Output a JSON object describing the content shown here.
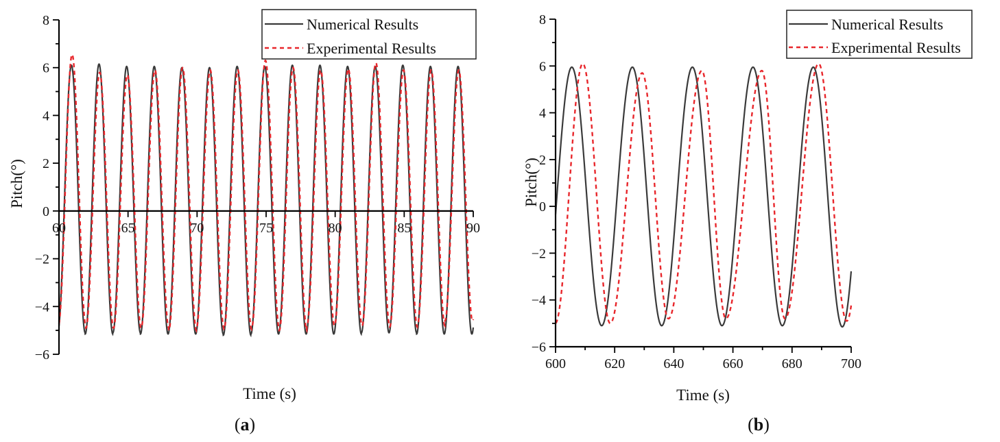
{
  "figure": {
    "panels": [
      "(a)",
      "(b)"
    ]
  },
  "chart_data": [
    {
      "type": "line",
      "panel_label": "a",
      "title": "",
      "xlabel": "Time (s)",
      "ylabel": "Pitch(°)",
      "xlim": [
        60,
        90
      ],
      "ylim": [
        -6,
        8
      ],
      "x_ticks": [
        60,
        65,
        70,
        75,
        80,
        85,
        90
      ],
      "x_tick_labels": [
        "60",
        "65",
        "70",
        "75",
        "80",
        "85",
        "90"
      ],
      "y_ticks": [
        -6,
        -4,
        -2,
        0,
        2,
        4,
        6,
        8
      ],
      "y_tick_labels": [
        "−6",
        "−4",
        "−2",
        "0",
        "2",
        "4",
        "6",
        "8"
      ],
      "x_axis_position": "y=0",
      "grid": false,
      "legend": {
        "placement": "top-right",
        "entries": [
          "Numerical Results",
          "Experimental Results"
        ]
      },
      "series": [
        {
          "name": "Numerical Results",
          "style": "solid",
          "color": "#3a3a3a",
          "model": {
            "period_s": 2.0,
            "first_peak_s": 60.9,
            "peak": 6.1,
            "trough": -5.15
          },
          "peaks": [
            6.1,
            6.15,
            6.05,
            6.05,
            6.0,
            6.0,
            6.05,
            6.05,
            6.1,
            6.1,
            6.05,
            6.05,
            6.1,
            6.05,
            6.05
          ],
          "troughs": [
            -5.1,
            -5.15,
            -5.1,
            -5.15,
            -5.15,
            -5.15,
            -5.2,
            -5.15,
            -5.15,
            -5.15,
            -5.15,
            -5.1,
            -5.1,
            -5.15,
            -5.15
          ]
        },
        {
          "name": "Experimental Results",
          "style": "dashed",
          "color": "#e8262b",
          "model": {
            "period_s": 2.0,
            "first_peak_s": 60.95,
            "peak": 6.0,
            "trough": -4.9
          },
          "peaks": [
            6.55,
            5.8,
            5.7,
            5.9,
            6.0,
            5.9,
            5.9,
            6.3,
            6.0,
            5.9,
            5.95,
            6.2,
            5.9,
            5.9,
            5.9
          ],
          "troughs": [
            -4.8,
            -4.9,
            -4.9,
            -4.9,
            -5.0,
            -4.9,
            -4.95,
            -4.9,
            -5.0,
            -4.8,
            -4.8,
            -4.8,
            -4.85,
            -4.8,
            -4.6
          ]
        }
      ]
    },
    {
      "type": "line",
      "panel_label": "b",
      "title": "",
      "xlabel": "Time (s)",
      "ylabel": "Pitch(°)",
      "xlim": [
        600,
        700
      ],
      "ylim": [
        -6,
        8
      ],
      "x_ticks": [
        600,
        620,
        640,
        660,
        680,
        700
      ],
      "x_tick_labels": [
        "600",
        "620",
        "640",
        "660",
        "680",
        "700"
      ],
      "y_ticks": [
        -6,
        -4,
        -2,
        0,
        2,
        4,
        6,
        8
      ],
      "y_tick_labels": [
        "−6",
        "−4",
        "−2",
        "0",
        "2",
        "4",
        "6",
        "8"
      ],
      "x_axis_position": "bottom",
      "grid": false,
      "legend": {
        "placement": "top-right",
        "entries": [
          "Numerical Results",
          "Experimental Results"
        ]
      },
      "series": [
        {
          "name": "Numerical Results",
          "style": "solid",
          "color": "#3a3a3a",
          "peak_times": [
            605.5,
            626.0,
            646.3,
            666.8,
            687.2
          ],
          "peak_values": [
            5.95,
            5.95,
            5.95,
            5.95,
            5.95
          ],
          "trough_times": [
            615.6,
            635.9,
            656.3,
            676.7,
            697.0
          ],
          "trough_values": [
            -5.1,
            -5.1,
            -5.1,
            -5.1,
            -5.15
          ],
          "start": {
            "x": 600,
            "y": -0.7
          },
          "end": {
            "x": 700,
            "y": -3.65
          }
        },
        {
          "name": "Experimental Results",
          "style": "dashed",
          "color": "#e8262b",
          "peak_times": [
            609.2,
            629.3,
            649.5,
            669.8,
            689.0
          ],
          "peak_values": [
            6.1,
            5.7,
            5.8,
            5.8,
            6.1
          ],
          "trough_times": [
            618.5,
            638.2,
            657.6,
            677.6,
            698.5
          ],
          "trough_values": [
            -5.0,
            -4.8,
            -4.8,
            -4.8,
            -4.9
          ],
          "start": {
            "x": 600,
            "y": -4.4
          },
          "end": {
            "x": 700,
            "y": -4.5
          }
        }
      ]
    }
  ]
}
